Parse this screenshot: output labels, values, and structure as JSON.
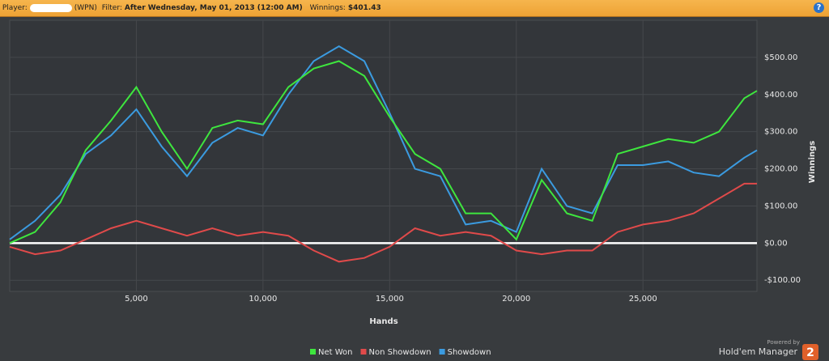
{
  "header": {
    "player_label": "Player:",
    "network": "(WPN)",
    "filter_label": "Filter:",
    "filter": "After Wednesday, May 01, 2013 (12:00 AM)",
    "winnings_label": "Winnings:",
    "winnings": "$401.43",
    "help": "?"
  },
  "chart_data": {
    "type": "line",
    "xlabel": "Hands",
    "ylabel": "Winnings",
    "x": [
      0,
      1000,
      2000,
      3000,
      4000,
      5000,
      6000,
      7000,
      8000,
      9000,
      10000,
      11000,
      12000,
      13000,
      14000,
      15000,
      16000,
      17000,
      18000,
      19000,
      20000,
      21000,
      22000,
      23000,
      24000,
      25000,
      26000,
      27000,
      28000,
      29000,
      29500
    ],
    "series": [
      {
        "name": "Net Won",
        "color": "#3ee63e",
        "values": [
          0,
          30,
          110,
          250,
          330,
          420,
          300,
          200,
          310,
          330,
          320,
          420,
          470,
          490,
          450,
          340,
          240,
          200,
          80,
          80,
          10,
          170,
          80,
          60,
          240,
          260,
          280,
          270,
          300,
          390,
          410
        ]
      },
      {
        "name": "Non Showdown",
        "color": "#e04a4a",
        "values": [
          -10,
          -30,
          -20,
          10,
          40,
          60,
          40,
          20,
          40,
          20,
          30,
          20,
          -20,
          -50,
          -40,
          -10,
          40,
          20,
          30,
          20,
          -20,
          -30,
          -20,
          -20,
          30,
          50,
          60,
          80,
          120,
          160,
          160
        ]
      },
      {
        "name": "Showdown",
        "color": "#3b9be0",
        "values": [
          10,
          60,
          130,
          240,
          290,
          360,
          260,
          180,
          270,
          310,
          290,
          400,
          490,
          530,
          490,
          350,
          200,
          180,
          50,
          60,
          30,
          200,
          100,
          80,
          210,
          210,
          220,
          190,
          180,
          230,
          250
        ]
      }
    ],
    "xlim": [
      0,
      29500
    ],
    "ylim": [
      -130,
      600
    ],
    "xticks": [
      {
        "value": 5000,
        "label": "5,000"
      },
      {
        "value": 10000,
        "label": "10,000"
      },
      {
        "value": 15000,
        "label": "15,000"
      },
      {
        "value": 20000,
        "label": "20,000"
      },
      {
        "value": 25000,
        "label": "25,000"
      }
    ],
    "yticks": [
      {
        "value": -100,
        "label": "-$100.00"
      },
      {
        "value": 0,
        "label": "$0.00"
      },
      {
        "value": 100,
        "label": "$100.00"
      },
      {
        "value": 200,
        "label": "$200.00"
      },
      {
        "value": 300,
        "label": "$300.00"
      },
      {
        "value": 400,
        "label": "$400.00"
      },
      {
        "value": 500,
        "label": "$500.00"
      }
    ],
    "grid": true,
    "zero_line_color": "#ffffff",
    "legend": "bottom"
  },
  "branding": {
    "powered": "Powered by",
    "product": "Hold'em Manager",
    "version": "2"
  }
}
